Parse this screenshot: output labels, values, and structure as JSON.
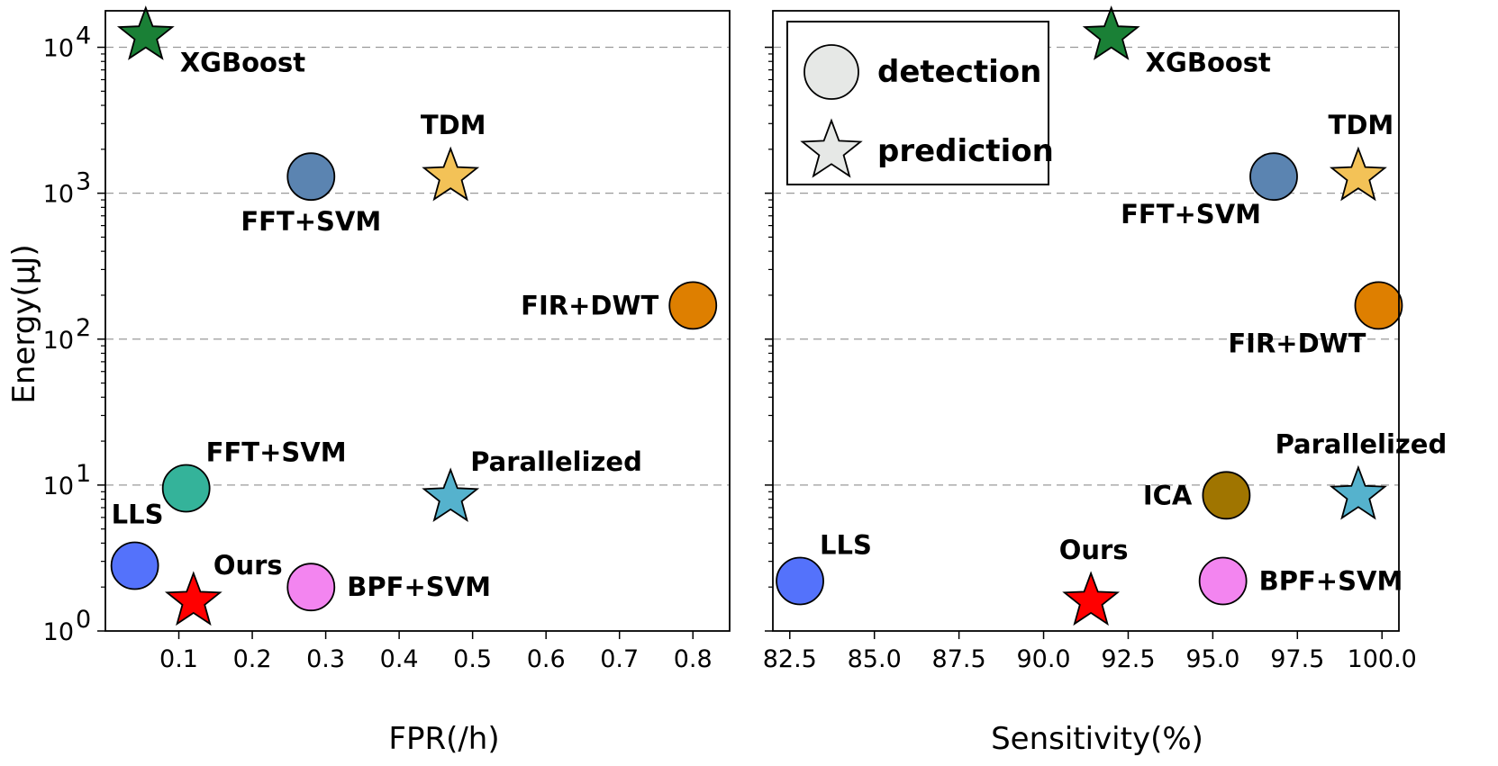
{
  "chart_data": [
    {
      "type": "scatter",
      "xlabel": "FPR(/h)",
      "ylabel": "Energy(μJ)",
      "yscale": "log",
      "ylim_exp": [
        0,
        4.25
      ],
      "xlim": [
        0.0,
        0.85
      ],
      "xticks": [
        0.1,
        0.2,
        0.3,
        0.4,
        0.5,
        0.6,
        0.7,
        0.8
      ],
      "xtick_labels": [
        "0.1",
        "0.2",
        "0.3",
        "0.4",
        "0.5",
        "0.6",
        "0.7",
        "0.8"
      ],
      "grid": "horizontal dashed at decades",
      "points": [
        {
          "label": "XGBoost",
          "x": 0.055,
          "y": 12000,
          "marker": "star",
          "color": "#1a8036",
          "label_pos": "below-right"
        },
        {
          "label": "TDM",
          "x": 0.47,
          "y": 1300,
          "marker": "star",
          "color": "#f3c257",
          "label_pos": "above"
        },
        {
          "label": "FFT+SVM",
          "x": 0.28,
          "y": 1300,
          "marker": "circle",
          "color": "#5b84b1",
          "label_pos": "below"
        },
        {
          "label": "FIR+DWT",
          "x": 0.8,
          "y": 170,
          "marker": "circle",
          "color": "#de7f00",
          "label_pos": "left"
        },
        {
          "label": "FFT+SVM",
          "x": 0.11,
          "y": 9.5,
          "marker": "circle",
          "color": "#34b39a",
          "label_pos": "above-right"
        },
        {
          "label": "Parallelized",
          "x": 0.47,
          "y": 8.2,
          "marker": "star",
          "color": "#55b2cd",
          "label_pos": "above-right"
        },
        {
          "label": "LLS",
          "x": 0.04,
          "y": 2.8,
          "marker": "circle",
          "color": "#5472fb",
          "label_pos": "above"
        },
        {
          "label": "Ours",
          "x": 0.12,
          "y": 1.6,
          "marker": "star",
          "color": "#ff0000",
          "label_pos": "above-right"
        },
        {
          "label": "BPF+SVM",
          "x": 0.28,
          "y": 2.0,
          "marker": "circle",
          "color": "#f385f0",
          "label_pos": "right"
        }
      ]
    },
    {
      "type": "scatter",
      "xlabel": "Sensitivity(%)",
      "ylabel": "",
      "yscale": "log",
      "ylim_exp": [
        0,
        4.25
      ],
      "xlim": [
        82.0,
        100.5
      ],
      "xticks": [
        82.5,
        85.0,
        87.5,
        90.0,
        92.5,
        95.0,
        97.5,
        100.0
      ],
      "xtick_labels": [
        "82.5",
        "85.0",
        "87.5",
        "90.0",
        "92.5",
        "95.0",
        "97.5",
        "100.0"
      ],
      "grid": "horizontal dashed at decades",
      "points": [
        {
          "label": "XGBoost",
          "x": 92.0,
          "y": 12000,
          "marker": "star",
          "color": "#1a8036",
          "label_pos": "below-right"
        },
        {
          "label": "TDM",
          "x": 99.3,
          "y": 1300,
          "marker": "star",
          "color": "#f3c257",
          "label_pos": "above"
        },
        {
          "label": "FFT+SVM",
          "x": 96.8,
          "y": 1300,
          "marker": "circle",
          "color": "#5b84b1",
          "label_pos": "below-left"
        },
        {
          "label": "FIR+DWT",
          "x": 99.9,
          "y": 170,
          "marker": "circle",
          "color": "#de7f00",
          "label_pos": "below-left"
        },
        {
          "label": "Parallelized",
          "x": 99.3,
          "y": 8.5,
          "marker": "star",
          "color": "#55b2cd",
          "label_pos": "above"
        },
        {
          "label": "ICA",
          "x": 95.4,
          "y": 8.5,
          "marker": "circle",
          "color": "#a07500",
          "label_pos": "left"
        },
        {
          "label": "LLS",
          "x": 82.8,
          "y": 2.2,
          "marker": "circle",
          "color": "#5472fb",
          "label_pos": "above-right"
        },
        {
          "label": "Ours",
          "x": 91.4,
          "y": 1.6,
          "marker": "star",
          "color": "#ff0000",
          "label_pos": "above"
        },
        {
          "label": "BPF+SVM",
          "x": 95.3,
          "y": 2.2,
          "marker": "circle",
          "color": "#f385f0",
          "label_pos": "right"
        }
      ],
      "legend": {
        "position": "top-left",
        "entries": [
          {
            "label": "detection",
            "marker": "circle",
            "color": "#e6e8e6"
          },
          {
            "label": "prediction",
            "marker": "star",
            "color": "#e6e8e6"
          }
        ]
      }
    }
  ]
}
